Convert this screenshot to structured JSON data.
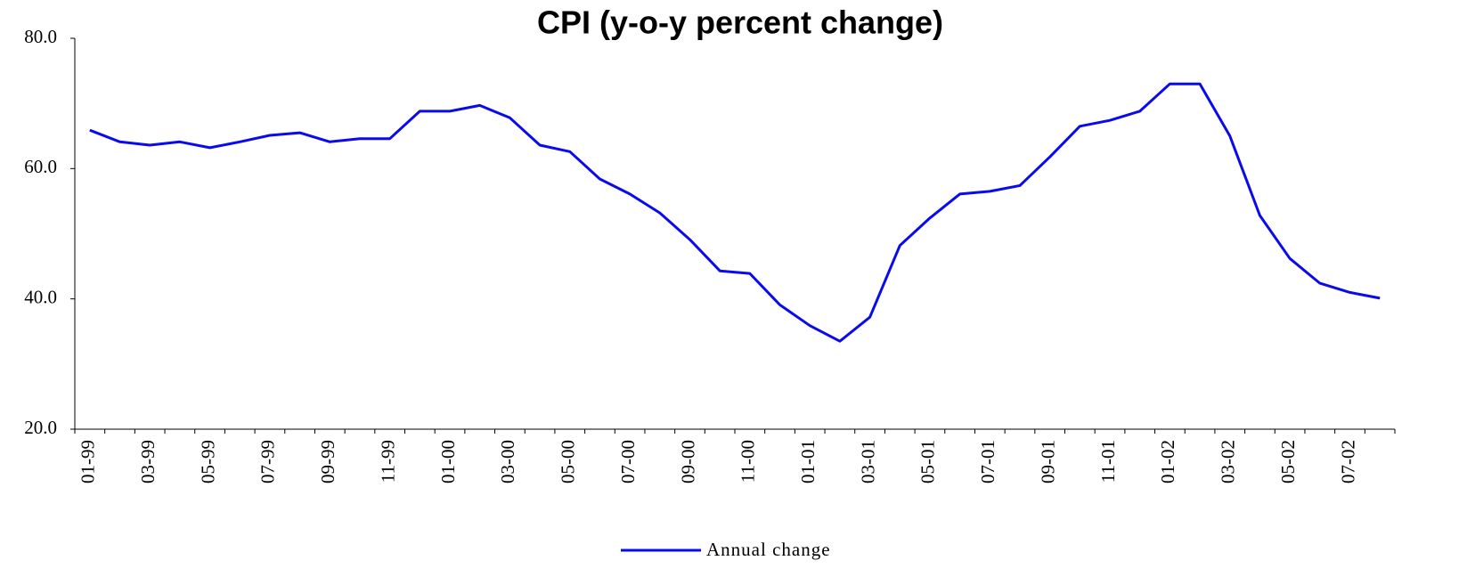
{
  "chart_data": {
    "type": "line",
    "title": "CPI  (y-o-y percent change)",
    "categories": [
      "01-99",
      null,
      "03-99",
      null,
      "05-99",
      null,
      "07-99",
      null,
      "09-99",
      null,
      "11-99",
      null,
      "01-00",
      null,
      "03-00",
      null,
      "05-00",
      null,
      "07-00",
      null,
      "09-00",
      null,
      "11-00",
      null,
      "01-01",
      null,
      "03-01",
      null,
      "05-01",
      null,
      "07-01",
      null,
      "09-01",
      null,
      "11-01",
      null,
      "01-02",
      null,
      "03-02",
      null,
      "05-02",
      null,
      "07-02",
      null
    ],
    "series": [
      {
        "name": "Annual change",
        "color": "#0a0aee",
        "values": [
          65.9,
          64.1,
          63.6,
          64.1,
          63.2,
          64.1,
          65.1,
          65.5,
          64.1,
          64.6,
          64.6,
          68.8,
          68.8,
          69.7,
          67.8,
          63.6,
          62.6,
          58.4,
          56.1,
          53.2,
          49.1,
          44.3,
          43.9,
          39.1,
          35.9,
          33.5,
          37.2,
          48.2,
          52.4,
          56.1,
          56.5,
          57.4,
          61.8,
          66.5,
          67.4,
          68.8,
          73.0,
          73.0,
          65.0,
          52.8,
          46.2,
          42.4,
          41.0,
          40.1
        ]
      }
    ],
    "ylim": [
      20,
      80
    ],
    "yticks": [
      {
        "value": 20,
        "label": "20.0"
      },
      {
        "value": 40,
        "label": "40.0"
      },
      {
        "value": 60,
        "label": "60.0"
      },
      {
        "value": 80,
        "label": "80.0"
      }
    ],
    "legend": "bottom"
  }
}
